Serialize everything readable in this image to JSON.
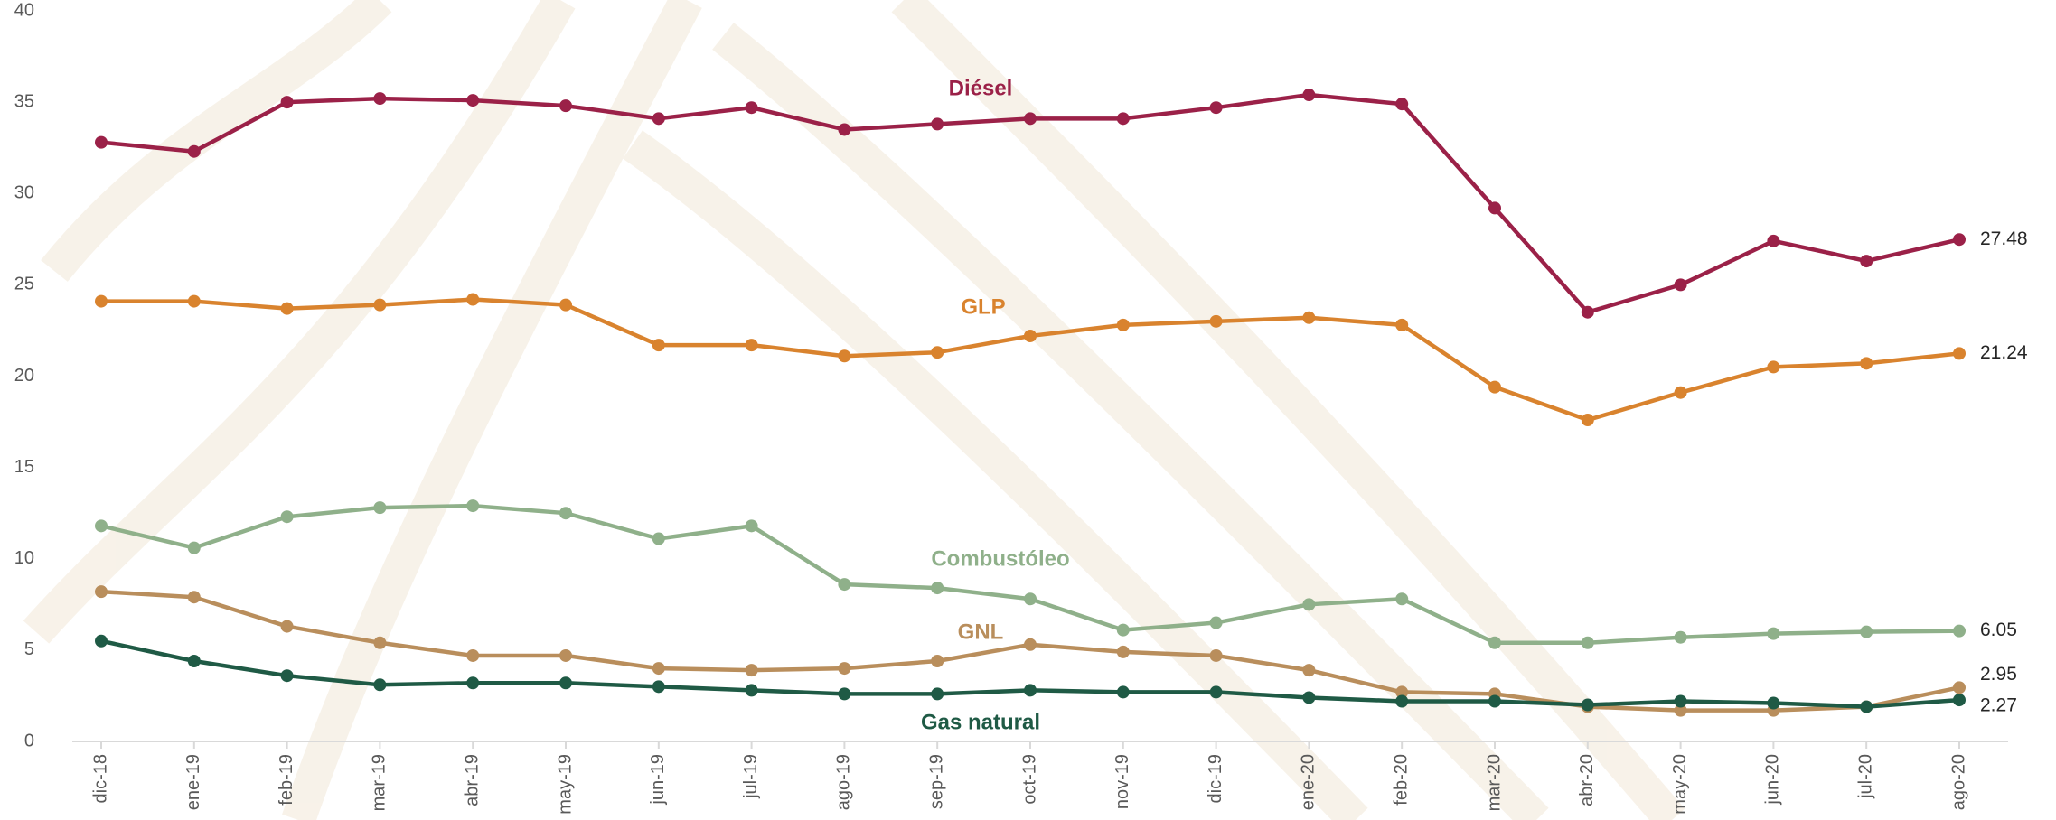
{
  "chart_data": {
    "type": "line",
    "categories": [
      "dic-18",
      "ene-19",
      "feb-19",
      "mar-19",
      "abr-19",
      "may-19",
      "jun-19",
      "jul-19",
      "ago-19",
      "sep-19",
      "oct-19",
      "nov-19",
      "dic-19",
      "ene-20",
      "feb-20",
      "mar-20",
      "abr-20",
      "may-20",
      "jun-20",
      "jul-20",
      "ago-20"
    ],
    "ylim": [
      0,
      40
    ],
    "yticks": [
      0,
      5,
      10,
      15,
      20,
      25,
      30,
      35,
      40
    ],
    "grid": false,
    "series": [
      {
        "name": "Diésel",
        "color": "#9b2148",
        "values": [
          32.8,
          32.3,
          35.0,
          35.2,
          35.1,
          34.8,
          34.1,
          34.7,
          33.5,
          33.8,
          34.1,
          34.1,
          34.7,
          35.4,
          34.9,
          29.2,
          23.5,
          25.0,
          27.4,
          26.3,
          27.48
        ]
      },
      {
        "name": "GLP",
        "color": "#d9832e",
        "values": [
          24.1,
          24.1,
          23.7,
          23.9,
          24.2,
          23.9,
          21.7,
          21.7,
          21.1,
          21.3,
          22.2,
          22.8,
          23.0,
          23.2,
          22.8,
          19.4,
          17.6,
          19.1,
          20.5,
          20.7,
          21.24
        ]
      },
      {
        "name": "Combustóleo",
        "color": "#8fb08a",
        "values": [
          11.8,
          10.6,
          12.3,
          12.8,
          12.9,
          12.5,
          11.1,
          11.8,
          8.6,
          8.4,
          7.8,
          6.1,
          6.5,
          7.5,
          7.8,
          5.4,
          5.4,
          5.7,
          5.9,
          6.0,
          6.05
        ]
      },
      {
        "name": "GNL",
        "color": "#b98e5c",
        "values": [
          8.2,
          7.9,
          6.3,
          5.4,
          4.7,
          4.7,
          4.0,
          3.9,
          4.0,
          4.4,
          5.3,
          4.9,
          4.7,
          3.9,
          2.7,
          2.6,
          1.9,
          1.7,
          1.7,
          1.9,
          2.95
        ]
      },
      {
        "name": "Gas natural",
        "color": "#1f5a45",
        "values": [
          5.5,
          4.4,
          3.6,
          3.1,
          3.2,
          3.2,
          3.0,
          2.8,
          2.6,
          2.6,
          2.8,
          2.7,
          2.7,
          2.4,
          2.2,
          2.2,
          2.0,
          2.2,
          2.1,
          1.9,
          2.27
        ]
      }
    ]
  }
}
